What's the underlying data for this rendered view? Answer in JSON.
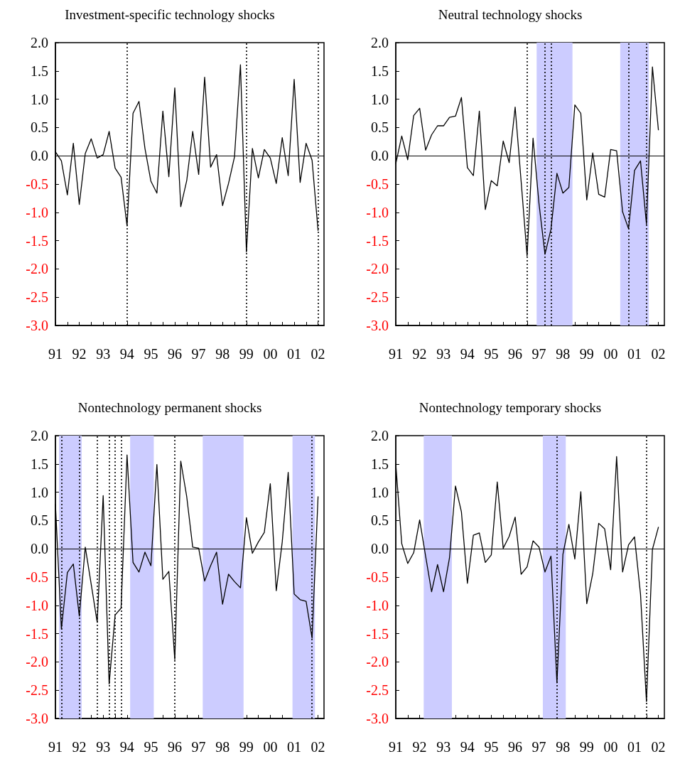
{
  "chart_data": [
    {
      "type": "line",
      "title": "Investment-specific technology shocks",
      "x": [
        1991,
        1991.25,
        1991.5,
        1991.75,
        1992,
        1992.25,
        1992.5,
        1992.75,
        1993,
        1993.25,
        1993.5,
        1993.75,
        1994,
        1994.25,
        1994.5,
        1994.75,
        1995,
        1995.25,
        1995.5,
        1995.75,
        1996,
        1996.25,
        1996.5,
        1996.75,
        1997,
        1997.25,
        1997.5,
        1997.75,
        1998,
        1998.25,
        1998.5,
        1998.75,
        1999,
        1999.25,
        1999.5,
        1999.75,
        2000,
        2000.25,
        2000.5,
        2000.75,
        2001,
        2001.25,
        2001.5,
        2001.75,
        2002
      ],
      "series": [
        {
          "color": "#000000",
          "values": [
            0.07,
            -0.09,
            -0.69,
            0.22,
            -0.86,
            0.04,
            0.3,
            -0.04,
            0.02,
            0.43,
            -0.22,
            -0.38,
            -1.24,
            0.75,
            0.96,
            0.13,
            -0.45,
            -0.66,
            0.79,
            -0.37,
            1.2,
            -0.9,
            -0.44,
            0.43,
            -0.33,
            1.39,
            -0.2,
            0.02,
            -0.88,
            -0.49,
            -0.02,
            1.61,
            -1.7,
            0.13,
            -0.39,
            0.11,
            -0.04,
            -0.49,
            0.32,
            -0.35,
            1.35,
            -0.47,
            0.22,
            -0.08,
            -1.32
          ]
        }
      ],
      "xlim": [
        1991,
        2002.25
      ],
      "xticks": [
        {
          "value": 1991,
          "label": "91"
        },
        {
          "value": 1991.5,
          "label": null
        },
        {
          "value": 1992,
          "label": "92"
        },
        {
          "value": 1992.5,
          "label": null
        },
        {
          "value": 1993,
          "label": "93"
        },
        {
          "value": 1993.5,
          "label": null
        },
        {
          "value": 1994,
          "label": "94"
        },
        {
          "value": 1994.5,
          "label": null
        },
        {
          "value": 1995,
          "label": "95"
        },
        {
          "value": 1995.5,
          "label": null
        },
        {
          "value": 1996,
          "label": "96"
        },
        {
          "value": 1996.5,
          "label": null
        },
        {
          "value": 1997,
          "label": "97"
        },
        {
          "value": 1997.5,
          "label": null
        },
        {
          "value": 1998,
          "label": "98"
        },
        {
          "value": 1998.5,
          "label": null
        },
        {
          "value": 1999,
          "label": "99"
        },
        {
          "value": 1999.5,
          "label": null
        },
        {
          "value": 2000,
          "label": "00"
        },
        {
          "value": 2000.5,
          "label": null
        },
        {
          "value": 2001,
          "label": "01"
        },
        {
          "value": 2001.5,
          "label": null
        },
        {
          "value": 2002,
          "label": "02"
        }
      ],
      "ylim": [
        -3,
        2
      ],
      "yticks": [
        {
          "value": -3,
          "label": "-3.0"
        },
        {
          "value": -2.5,
          "label": "-2.5"
        },
        {
          "value": -2,
          "label": "-2.0"
        },
        {
          "value": -1.5,
          "label": "-1.5"
        },
        {
          "value": -1,
          "label": "-1.0"
        },
        {
          "value": -0.5,
          "label": "-0.5"
        },
        {
          "value": 0,
          "label": "0.0"
        },
        {
          "value": 0.5,
          "label": "0.5"
        },
        {
          "value": 1,
          "label": "1.0"
        },
        {
          "value": 1.5,
          "label": "1.5"
        },
        {
          "value": 2,
          "label": "2.0"
        }
      ],
      "ref_lines": [
        {
          "axis": "y",
          "value": 0,
          "color": "#000000",
          "line_style": "solid"
        },
        {
          "axis": "x",
          "value": 1994,
          "color": "#000000",
          "line_style": "dotted"
        },
        {
          "axis": "x",
          "value": 1999,
          "color": "#000000",
          "line_style": "dotted"
        },
        {
          "axis": "x",
          "value": 2002,
          "color": "#000000",
          "line_style": "dotted"
        }
      ],
      "line_style": "solid"
    },
    {
      "type": "line",
      "title": "Neutral technology shocks",
      "x": [
        1991,
        1991.25,
        1991.5,
        1991.75,
        1992,
        1992.25,
        1992.5,
        1992.75,
        1993,
        1993.25,
        1993.5,
        1993.75,
        1994,
        1994.25,
        1994.5,
        1994.75,
        1995,
        1995.25,
        1995.5,
        1995.75,
        1996,
        1996.25,
        1996.5,
        1996.75,
        1997,
        1997.25,
        1997.5,
        1997.75,
        1998,
        1998.25,
        1998.5,
        1998.75,
        1999,
        1999.25,
        1999.5,
        1999.75,
        2000,
        2000.25,
        2000.5,
        2000.75,
        2001,
        2001.25,
        2001.5,
        2001.75,
        2002
      ],
      "series": [
        {
          "color": "#000000",
          "values": [
            -0.14,
            0.35,
            -0.07,
            0.71,
            0.84,
            0.1,
            0.37,
            0.53,
            0.53,
            0.68,
            0.7,
            1.03,
            -0.21,
            -0.35,
            0.79,
            -0.95,
            -0.44,
            -0.53,
            0.26,
            -0.12,
            0.86,
            -0.45,
            -1.77,
            0.31,
            -0.85,
            -1.74,
            -1.3,
            -0.31,
            -0.66,
            -0.56,
            0.9,
            0.75,
            -0.78,
            0.05,
            -0.68,
            -0.73,
            0.11,
            0.09,
            -0.99,
            -1.29,
            -0.26,
            -0.09,
            -1.21,
            1.57,
            0.46
          ]
        }
      ],
      "xlim": [
        1991,
        2002.25
      ],
      "xticks": [
        {
          "value": 1991,
          "label": "91"
        },
        {
          "value": 1991.5,
          "label": null
        },
        {
          "value": 1992,
          "label": "92"
        },
        {
          "value": 1992.5,
          "label": null
        },
        {
          "value": 1993,
          "label": "93"
        },
        {
          "value": 1993.5,
          "label": null
        },
        {
          "value": 1994,
          "label": "94"
        },
        {
          "value": 1994.5,
          "label": null
        },
        {
          "value": 1995,
          "label": "95"
        },
        {
          "value": 1995.5,
          "label": null
        },
        {
          "value": 1996,
          "label": "96"
        },
        {
          "value": 1996.5,
          "label": null
        },
        {
          "value": 1997,
          "label": "97"
        },
        {
          "value": 1997.5,
          "label": null
        },
        {
          "value": 1998,
          "label": "98"
        },
        {
          "value": 1998.5,
          "label": null
        },
        {
          "value": 1999,
          "label": "99"
        },
        {
          "value": 1999.5,
          "label": null
        },
        {
          "value": 2000,
          "label": "00"
        },
        {
          "value": 2000.5,
          "label": null
        },
        {
          "value": 2001,
          "label": "01"
        },
        {
          "value": 2001.5,
          "label": null
        },
        {
          "value": 2002,
          "label": "02"
        }
      ],
      "ylim": [
        -3,
        2
      ],
      "yticks": [
        {
          "value": -3,
          "label": "-3.0"
        },
        {
          "value": -2.5,
          "label": "-2.5"
        },
        {
          "value": -2,
          "label": "-2.0"
        },
        {
          "value": -1.5,
          "label": "-1.5"
        },
        {
          "value": -1,
          "label": "-1.0"
        },
        {
          "value": -0.5,
          "label": "-0.5"
        },
        {
          "value": 0,
          "label": "0.0"
        },
        {
          "value": 0.5,
          "label": "0.5"
        },
        {
          "value": 1,
          "label": "1.0"
        },
        {
          "value": 1.5,
          "label": "1.5"
        },
        {
          "value": 2,
          "label": "2.0"
        }
      ],
      "ref_lines": [
        {
          "axis": "y",
          "value": 0,
          "color": "#000000",
          "line_style": "solid"
        },
        {
          "axis": "x",
          "value": 1996.5,
          "color": "#000000",
          "line_style": "dotted"
        },
        {
          "axis": "x",
          "value": 1997.25,
          "color": "#000000",
          "line_style": "dotted"
        },
        {
          "axis": "x",
          "value": 1997.5,
          "color": "#000000",
          "line_style": "dotted"
        },
        {
          "axis": "x",
          "value": 2000.75,
          "color": "#000000",
          "line_style": "dotted"
        },
        {
          "axis": "x",
          "value": 2001.5,
          "color": "#000000",
          "line_style": "dotted"
        }
      ],
      "bands": [
        {
          "axis": "x",
          "from": 1996.9,
          "to": 1998.4,
          "color": "#ccccff"
        },
        {
          "axis": "x",
          "from": 2000.4,
          "to": 2001.6,
          "color": "#ccccff"
        }
      ],
      "line_style": "solid"
    },
    {
      "type": "line",
      "title": "Nontechnology permanent shocks",
      "x": [
        1991,
        1991.25,
        1991.5,
        1991.75,
        1992,
        1992.25,
        1992.5,
        1992.75,
        1993,
        1993.25,
        1993.5,
        1993.75,
        1994,
        1994.25,
        1994.5,
        1994.75,
        1995,
        1995.25,
        1995.5,
        1995.75,
        1996,
        1996.25,
        1996.5,
        1996.75,
        1997,
        1997.25,
        1997.5,
        1997.75,
        1998,
        1998.25,
        1998.5,
        1998.75,
        1999,
        1999.25,
        1999.5,
        1999.75,
        2000,
        2000.25,
        2000.5,
        2000.75,
        2001,
        2001.25,
        2001.5,
        2001.75,
        2002
      ],
      "series": [
        {
          "color": "#000000",
          "values": [
            0.79,
            -1.42,
            -0.42,
            -0.27,
            -1.19,
            0.03,
            -0.63,
            -1.3,
            0.94,
            -2.39,
            -1.17,
            -1.05,
            1.66,
            -0.24,
            -0.41,
            -0.06,
            -0.3,
            1.49,
            -0.54,
            -0.4,
            -1.96,
            1.55,
            0.92,
            0.03,
            0.01,
            -0.57,
            -0.3,
            -0.06,
            -0.98,
            -0.45,
            -0.58,
            -0.69,
            0.55,
            -0.08,
            0.12,
            0.29,
            1.15,
            -0.74,
            0.12,
            1.35,
            -0.8,
            -0.9,
            -0.93,
            -1.58,
            0.92
          ]
        }
      ],
      "xlim": [
        1991,
        2002.25
      ],
      "xticks": [
        {
          "value": 1991,
          "label": "91"
        },
        {
          "value": 1991.5,
          "label": null
        },
        {
          "value": 1992,
          "label": "92"
        },
        {
          "value": 1992.5,
          "label": null
        },
        {
          "value": 1993,
          "label": "93"
        },
        {
          "value": 1993.5,
          "label": null
        },
        {
          "value": 1994,
          "label": "94"
        },
        {
          "value": 1994.5,
          "label": null
        },
        {
          "value": 1995,
          "label": "95"
        },
        {
          "value": 1995.5,
          "label": null
        },
        {
          "value": 1996,
          "label": "96"
        },
        {
          "value": 1996.5,
          "label": null
        },
        {
          "value": 1997,
          "label": "97"
        },
        {
          "value": 1997.5,
          "label": null
        },
        {
          "value": 1998,
          "label": "98"
        },
        {
          "value": 1998.5,
          "label": null
        },
        {
          "value": 1999,
          "label": "99"
        },
        {
          "value": 1999.5,
          "label": null
        },
        {
          "value": 2000,
          "label": "00"
        },
        {
          "value": 2000.5,
          "label": null
        },
        {
          "value": 2001,
          "label": "01"
        },
        {
          "value": 2001.5,
          "label": null
        },
        {
          "value": 2002,
          "label": "02"
        }
      ],
      "ylim": [
        -3,
        2
      ],
      "yticks": [
        {
          "value": -3,
          "label": "-3.0"
        },
        {
          "value": -2.5,
          "label": "-2.5"
        },
        {
          "value": -2,
          "label": "-2.0"
        },
        {
          "value": -1.5,
          "label": "-1.5"
        },
        {
          "value": -1,
          "label": "-1.0"
        },
        {
          "value": -0.5,
          "label": "-0.5"
        },
        {
          "value": 0,
          "label": "0.0"
        },
        {
          "value": 0.5,
          "label": "0.5"
        },
        {
          "value": 1,
          "label": "1.0"
        },
        {
          "value": 1.5,
          "label": "1.5"
        },
        {
          "value": 2,
          "label": "2.0"
        }
      ],
      "ref_lines": [
        {
          "axis": "y",
          "value": 0,
          "color": "#000000",
          "line_style": "solid"
        },
        {
          "axis": "x",
          "value": 1991.25,
          "color": "#000000",
          "line_style": "dotted"
        },
        {
          "axis": "x",
          "value": 1992,
          "color": "#000000",
          "line_style": "dotted"
        },
        {
          "axis": "x",
          "value": 1992.75,
          "color": "#000000",
          "line_style": "dotted"
        },
        {
          "axis": "x",
          "value": 1993.25,
          "color": "#000000",
          "line_style": "dotted"
        },
        {
          "axis": "x",
          "value": 1993.5,
          "color": "#000000",
          "line_style": "dotted"
        },
        {
          "axis": "x",
          "value": 1993.75,
          "color": "#000000",
          "line_style": "dotted"
        },
        {
          "axis": "x",
          "value": 1996,
          "color": "#000000",
          "line_style": "dotted"
        },
        {
          "axis": "x",
          "value": 2001.75,
          "color": "#000000",
          "line_style": "dotted"
        }
      ],
      "bands": [
        {
          "axis": "x",
          "from": 1991.15,
          "to": 1992.1,
          "color": "#ccccff"
        },
        {
          "axis": "x",
          "from": 1994.13,
          "to": 1995.12,
          "color": "#ccccff"
        },
        {
          "axis": "x",
          "from": 1997.17,
          "to": 1998.88,
          "color": "#ccccff"
        },
        {
          "axis": "x",
          "from": 2000.93,
          "to": 2001.87,
          "color": "#ccccff"
        }
      ],
      "line_style": "solid"
    },
    {
      "type": "line",
      "title": "Nontechnology temporary shocks",
      "x": [
        1991,
        1991.25,
        1991.5,
        1991.75,
        1992,
        1992.25,
        1992.5,
        1992.75,
        1993,
        1993.25,
        1993.5,
        1993.75,
        1994,
        1994.25,
        1994.5,
        1994.75,
        1995,
        1995.25,
        1995.5,
        1995.75,
        1996,
        1996.25,
        1996.5,
        1996.75,
        1997,
        1997.25,
        1997.5,
        1997.75,
        1998,
        1998.25,
        1998.5,
        1998.75,
        1999,
        1999.25,
        1999.5,
        1999.75,
        2000,
        2000.25,
        2000.5,
        2000.75,
        2001,
        2001.25,
        2001.5,
        2001.75,
        2002
      ],
      "series": [
        {
          "color": "#000000",
          "values": [
            1.5,
            0.09,
            -0.26,
            -0.07,
            0.51,
            -0.13,
            -0.76,
            -0.28,
            -0.76,
            -0.16,
            1.11,
            0.65,
            -0.61,
            0.24,
            0.28,
            -0.24,
            -0.11,
            1.18,
            0.01,
            0.22,
            0.56,
            -0.45,
            -0.32,
            0.14,
            0.03,
            -0.41,
            -0.13,
            -2.37,
            -0.1,
            0.43,
            -0.18,
            1.01,
            -0.97,
            -0.44,
            0.45,
            0.35,
            -0.37,
            1.63,
            -0.41,
            0.07,
            0.21,
            -0.8,
            -2.7,
            -0.01,
            0.38
          ]
        }
      ],
      "xlim": [
        1991,
        2002.25
      ],
      "xticks": [
        {
          "value": 1991,
          "label": "91"
        },
        {
          "value": 1991.5,
          "label": null
        },
        {
          "value": 1992,
          "label": "92"
        },
        {
          "value": 1992.5,
          "label": null
        },
        {
          "value": 1993,
          "label": "93"
        },
        {
          "value": 1993.5,
          "label": null
        },
        {
          "value": 1994,
          "label": "94"
        },
        {
          "value": 1994.5,
          "label": null
        },
        {
          "value": 1995,
          "label": "95"
        },
        {
          "value": 1995.5,
          "label": null
        },
        {
          "value": 1996,
          "label": "96"
        },
        {
          "value": 1996.5,
          "label": null
        },
        {
          "value": 1997,
          "label": "97"
        },
        {
          "value": 1997.5,
          "label": null
        },
        {
          "value": 1998,
          "label": "98"
        },
        {
          "value": 1998.5,
          "label": null
        },
        {
          "value": 1999,
          "label": "99"
        },
        {
          "value": 1999.5,
          "label": null
        },
        {
          "value": 2000,
          "label": "00"
        },
        {
          "value": 2000.5,
          "label": null
        },
        {
          "value": 2001,
          "label": "01"
        },
        {
          "value": 2001.5,
          "label": null
        },
        {
          "value": 2002,
          "label": "02"
        }
      ],
      "ylim": [
        -3,
        2
      ],
      "yticks": [
        {
          "value": -3,
          "label": "-3.0"
        },
        {
          "value": -2.5,
          "label": "-2.5"
        },
        {
          "value": -2,
          "label": "-2.0"
        },
        {
          "value": -1.5,
          "label": "-1.5"
        },
        {
          "value": -1,
          "label": "-1.0"
        },
        {
          "value": -0.5,
          "label": "-0.5"
        },
        {
          "value": 0,
          "label": "0.0"
        },
        {
          "value": 0.5,
          "label": "0.5"
        },
        {
          "value": 1,
          "label": "1.0"
        },
        {
          "value": 1.5,
          "label": "1.5"
        },
        {
          "value": 2,
          "label": "2.0"
        }
      ],
      "ref_lines": [
        {
          "axis": "y",
          "value": 0,
          "color": "#000000",
          "line_style": "solid"
        },
        {
          "axis": "x",
          "value": 1997.75,
          "color": "#000000",
          "line_style": "dotted"
        },
        {
          "axis": "x",
          "value": 2001.5,
          "color": "#000000",
          "line_style": "dotted"
        }
      ],
      "bands": [
        {
          "axis": "x",
          "from": 1992.17,
          "to": 1993.35,
          "color": "#ccccff"
        },
        {
          "axis": "x",
          "from": 1997.16,
          "to": 1998.12,
          "color": "#ccccff"
        }
      ],
      "line_style": "solid"
    }
  ]
}
